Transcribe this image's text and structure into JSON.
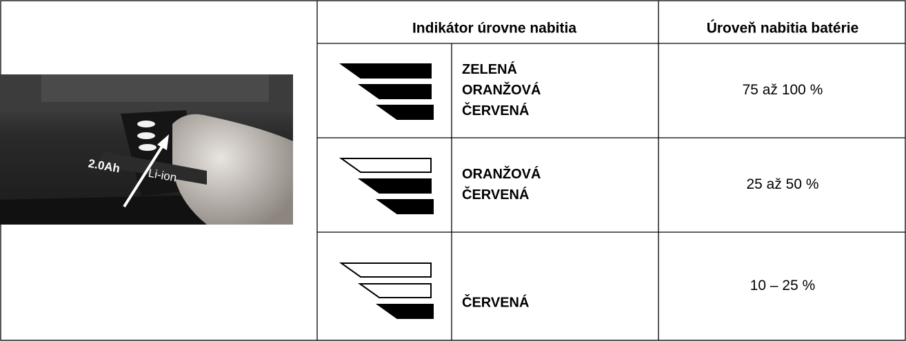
{
  "header": {
    "indicator": "Indikátor úrovne nabitia",
    "level": "Úroveň nabitia batérie"
  },
  "photo": {
    "labels": [
      "2.0Ah",
      "Li-ion"
    ]
  },
  "rows": [
    {
      "lit": [
        true,
        true,
        true
      ],
      "colors": [
        "ZELENÁ",
        "ORANŽOVÁ",
        "ČERVENÁ"
      ],
      "level": "75 až 100 %"
    },
    {
      "lit": [
        false,
        true,
        true
      ],
      "colors": [
        "ORANŽOVÁ",
        "ČERVENÁ"
      ],
      "level": "25 až 50 %"
    },
    {
      "lit": [
        false,
        false,
        true
      ],
      "colors": [
        "ČERVENÁ"
      ],
      "level": "10 – 25 %"
    }
  ]
}
